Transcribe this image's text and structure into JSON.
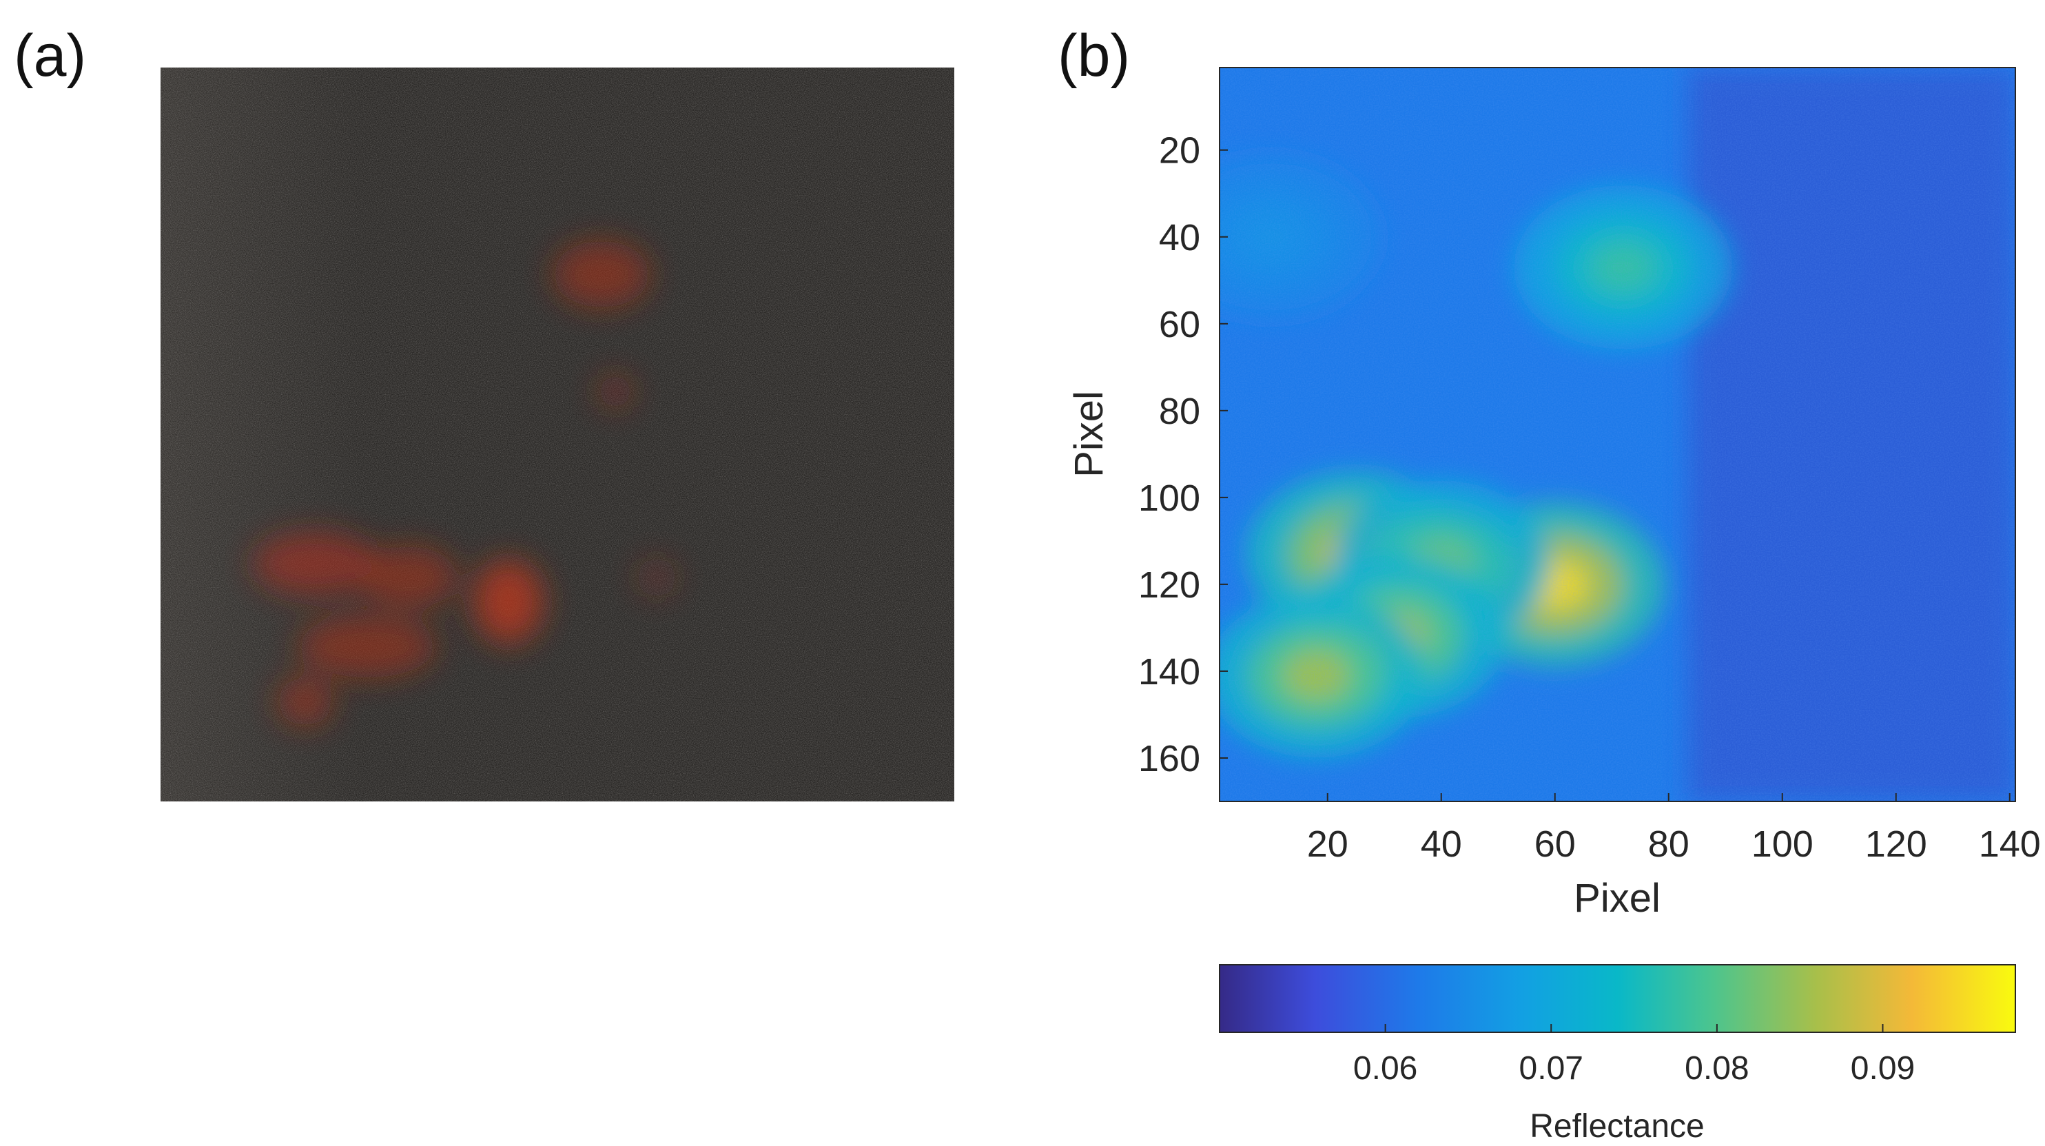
{
  "panels": {
    "a_label": "(a)",
    "b_label": "(b)"
  },
  "photo": {
    "description_icon": "photo-image",
    "base_color": "#2a2826",
    "accent_color": "#b8301c"
  },
  "chart_data": {
    "type": "heatmap",
    "xlabel": "Pixel",
    "ylabel": "Pixel",
    "xlim": [
      1,
      141
    ],
    "ylim": [
      1,
      170
    ],
    "y_reversed": true,
    "x_ticks": [
      20,
      40,
      60,
      80,
      100,
      120,
      140
    ],
    "y_ticks": [
      20,
      40,
      60,
      80,
      100,
      120,
      140,
      160
    ],
    "colormap": "parula",
    "colorbar": {
      "label": "Reflectance",
      "range": [
        0.05,
        0.098
      ],
      "ticks": [
        0.06,
        0.07,
        0.08,
        0.09
      ],
      "tick_labels": [
        "0.06",
        "0.07",
        "0.08",
        "0.09"
      ],
      "orientation": "horizontal",
      "placement": "below"
    },
    "background_value": 0.062,
    "features": [
      {
        "x": 25,
        "y": 113,
        "value": 0.091
      },
      {
        "x": 60,
        "y": 120,
        "value": 0.095
      },
      {
        "x": 40,
        "y": 115,
        "value": 0.082
      },
      {
        "x": 32,
        "y": 132,
        "value": 0.086
      },
      {
        "x": 18,
        "y": 141,
        "value": 0.086
      },
      {
        "x": 72,
        "y": 47,
        "value": 0.078
      },
      {
        "x": 10,
        "y": 40,
        "value": 0.066
      }
    ]
  }
}
